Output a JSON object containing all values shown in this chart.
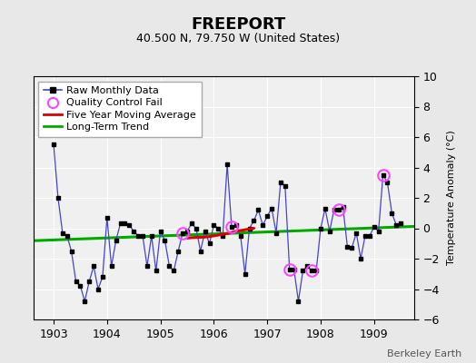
{
  "title": "FREEPORT",
  "subtitle": "40.500 N, 79.750 W (United States)",
  "ylabel": "Temperature Anomaly (°C)",
  "watermark": "Berkeley Earth",
  "xlim": [
    1902.62,
    1909.75
  ],
  "ylim": [
    -6,
    10
  ],
  "yticks": [
    -6,
    -4,
    -2,
    0,
    2,
    4,
    6,
    8,
    10
  ],
  "xticks": [
    1903,
    1904,
    1905,
    1906,
    1907,
    1908,
    1909
  ],
  "bg_color": "#e8e8e8",
  "plot_bg_color": "#f0f0f0",
  "raw_x": [
    1903.0,
    1903.083,
    1903.167,
    1903.25,
    1903.333,
    1903.417,
    1903.5,
    1903.583,
    1903.667,
    1903.75,
    1903.833,
    1903.917,
    1904.0,
    1904.083,
    1904.167,
    1904.25,
    1904.333,
    1904.417,
    1904.5,
    1904.583,
    1904.667,
    1904.75,
    1904.833,
    1904.917,
    1905.0,
    1905.083,
    1905.167,
    1905.25,
    1905.333,
    1905.417,
    1905.5,
    1905.583,
    1905.667,
    1905.75,
    1905.833,
    1905.917,
    1906.0,
    1906.083,
    1906.167,
    1906.25,
    1906.333,
    1906.417,
    1906.5,
    1906.583,
    1906.667,
    1906.75,
    1906.833,
    1906.917,
    1907.0,
    1907.083,
    1907.167,
    1907.25,
    1907.333,
    1907.417,
    1907.5,
    1907.583,
    1907.667,
    1907.75,
    1907.833,
    1907.917,
    1908.0,
    1908.083,
    1908.167,
    1908.25,
    1908.333,
    1908.417,
    1908.5,
    1908.583,
    1908.667,
    1908.75,
    1908.833,
    1908.917,
    1909.0,
    1909.083,
    1909.167,
    1909.25,
    1909.333,
    1909.417,
    1909.5
  ],
  "raw_y": [
    5.5,
    2.0,
    -0.3,
    -0.5,
    -1.5,
    -3.5,
    -3.8,
    -4.8,
    -3.5,
    -2.5,
    -4.0,
    -3.2,
    0.7,
    -2.5,
    -0.8,
    0.3,
    0.3,
    0.2,
    -0.2,
    -0.5,
    -0.5,
    -2.5,
    -0.5,
    -2.8,
    -0.2,
    -0.8,
    -2.5,
    -2.8,
    -1.5,
    -0.3,
    -0.2,
    0.3,
    0.0,
    -1.5,
    -0.2,
    -1.0,
    0.2,
    0.0,
    -0.5,
    4.2,
    0.1,
    0.2,
    -0.5,
    -3.0,
    0.0,
    0.5,
    1.2,
    0.2,
    0.8,
    1.3,
    -0.3,
    3.0,
    2.8,
    -2.7,
    -2.7,
    -4.8,
    -2.8,
    -2.5,
    -2.8,
    -2.8,
    0.0,
    1.3,
    -0.2,
    1.2,
    1.2,
    1.4,
    -1.2,
    -1.3,
    -0.3,
    -2.0,
    -0.5,
    -0.5,
    0.1,
    -0.2,
    3.5,
    3.0,
    1.0,
    0.2,
    0.3
  ],
  "qc_fail_x": [
    1905.417,
    1906.333,
    1907.417,
    1907.833,
    1908.333,
    1909.167
  ],
  "qc_fail_y": [
    -0.3,
    0.1,
    -2.7,
    -2.8,
    1.2,
    3.5
  ],
  "moving_avg_x": [
    1905.5,
    1905.583,
    1905.667,
    1905.75,
    1905.833,
    1905.917,
    1906.0,
    1906.083,
    1906.167,
    1906.25,
    1906.333,
    1906.417,
    1906.5,
    1906.583,
    1906.667,
    1906.75
  ],
  "moving_avg_y": [
    -0.65,
    -0.62,
    -0.6,
    -0.6,
    -0.58,
    -0.55,
    -0.5,
    -0.45,
    -0.4,
    -0.35,
    -0.28,
    -0.2,
    -0.15,
    -0.1,
    -0.05,
    0.0
  ],
  "trend_x": [
    1902.62,
    1909.75
  ],
  "trend_y": [
    -0.82,
    0.12
  ],
  "raw_color": "#4444cc",
  "marker_color": "#000000",
  "qc_color": "#ff44ff",
  "moving_avg_color": "#dd0000",
  "trend_color": "#00aa00",
  "title_fontsize": 13,
  "subtitle_fontsize": 9,
  "tick_fontsize": 9,
  "ylabel_fontsize": 8,
  "legend_fontsize": 8,
  "watermark_fontsize": 8
}
